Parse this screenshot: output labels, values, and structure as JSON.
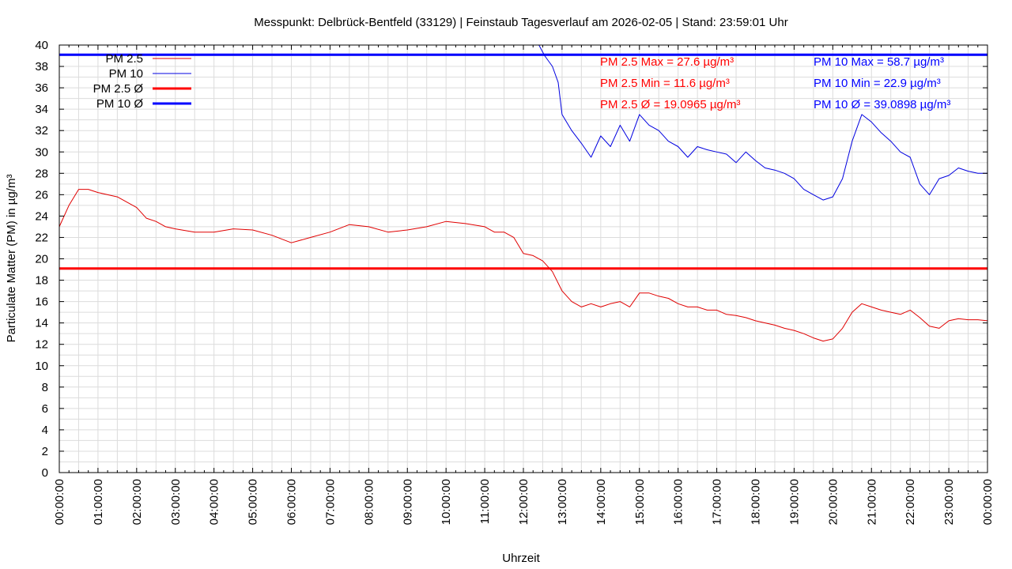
{
  "chart_data": {
    "type": "line",
    "title": "Messpunkt: Delbrück-Bentfeld (33129) | Feinstaub Tagesverlauf am 2026-02-05 | Stand: 23:59:01 Uhr",
    "xlabel": "Uhrzeit",
    "ylabel": "Particulate Matter (PM) in µg/m³",
    "xlim": [
      "00:00:00",
      "24:00:00"
    ],
    "ylim": [
      0,
      40
    ],
    "y_ticks": [
      "0",
      "2",
      "4",
      "6",
      "8",
      "10",
      "12",
      "14",
      "16",
      "18",
      "20",
      "22",
      "24",
      "26",
      "28",
      "30",
      "32",
      "34",
      "36",
      "38",
      "40"
    ],
    "x_ticks": [
      "00:00:00",
      "01:00:00",
      "02:00:00",
      "03:00:00",
      "04:00:00",
      "05:00:00",
      "06:00:00",
      "07:00:00",
      "08:00:00",
      "09:00:00",
      "10:00:00",
      "11:00:00",
      "12:00:00",
      "13:00:00",
      "14:00:00",
      "15:00:00",
      "16:00:00",
      "17:00:00",
      "18:00:00",
      "19:00:00",
      "20:00:00",
      "21:00:00",
      "22:00:00",
      "23:00:00",
      "00:00:00"
    ],
    "grid": true,
    "legend_position": "top-left",
    "legend": [
      "PM 2.5",
      "PM 10",
      "PM 2.5 Ø",
      "PM 10 Ø"
    ],
    "series": [
      {
        "name": "PM 2.5",
        "color": "#e00000",
        "x_hours": [
          0,
          0.25,
          0.5,
          0.75,
          1,
          1.25,
          1.5,
          1.75,
          2,
          2.25,
          2.5,
          2.75,
          3,
          3.5,
          4,
          4.5,
          5,
          5.5,
          6,
          6.5,
          7,
          7.5,
          8,
          8.5,
          9,
          9.5,
          10,
          10.5,
          11,
          11.25,
          11.5,
          11.75,
          12,
          12.25,
          12.5,
          12.75,
          13,
          13.25,
          13.5,
          13.75,
          14,
          14.25,
          14.5,
          14.75,
          15,
          15.25,
          15.5,
          15.75,
          16,
          16.25,
          16.5,
          16.75,
          17,
          17.25,
          17.5,
          17.75,
          18,
          18.25,
          18.5,
          18.75,
          19,
          19.25,
          19.5,
          19.75,
          20,
          20.25,
          20.5,
          20.75,
          21,
          21.25,
          21.5,
          21.75,
          22,
          22.25,
          22.5,
          22.75,
          23,
          23.25,
          23.5,
          23.75,
          24
        ],
        "values": [
          23,
          25,
          26.5,
          26.5,
          26.2,
          26,
          25.8,
          25.3,
          24.8,
          23.8,
          23.5,
          23,
          22.8,
          22.5,
          22.5,
          22.8,
          22.7,
          22.2,
          21.5,
          22,
          22.5,
          23.2,
          23,
          22.5,
          22.7,
          23,
          23.5,
          23.3,
          23,
          22.5,
          22.5,
          22,
          20.5,
          20.3,
          19.8,
          18.8,
          17,
          16,
          15.5,
          15.8,
          15.5,
          15.8,
          16,
          15.5,
          16.8,
          16.8,
          16.5,
          16.3,
          15.8,
          15.5,
          15.5,
          15.2,
          15.2,
          14.8,
          14.7,
          14.5,
          14.2,
          14,
          13.8,
          13.5,
          13.3,
          13,
          12.6,
          12.3,
          12.5,
          13.5,
          15,
          15.8,
          15.5,
          15.2,
          15,
          14.8,
          15.2,
          14.5,
          13.7,
          13.5,
          14.2,
          14.4,
          14.3,
          14.3,
          14.2
        ]
      },
      {
        "name": "PM 10",
        "color": "#0000e0",
        "x_hours": [
          12.4,
          12.55,
          12.75,
          12.9,
          13,
          13.25,
          13.5,
          13.75,
          14,
          14.25,
          14.5,
          14.75,
          15,
          15.25,
          15.5,
          15.75,
          16,
          16.25,
          16.5,
          16.75,
          17,
          17.25,
          17.5,
          17.75,
          18,
          18.25,
          18.5,
          18.75,
          19,
          19.25,
          19.5,
          19.75,
          20,
          20.25,
          20.5,
          20.75,
          21,
          21.25,
          21.5,
          21.75,
          22,
          22.25,
          22.5,
          22.75,
          23,
          23.25,
          23.5,
          23.75,
          24
        ],
        "values": [
          40,
          39,
          38,
          36.5,
          33.5,
          32,
          30.8,
          29.5,
          31.5,
          30.5,
          32.5,
          31,
          33.5,
          32.5,
          32,
          31,
          30.5,
          29.5,
          30.5,
          30.2,
          30,
          29.8,
          29,
          30,
          29.2,
          28.5,
          28.3,
          28,
          27.5,
          26.5,
          26,
          25.5,
          25.8,
          27.5,
          31,
          33.5,
          32.8,
          31.8,
          31,
          30,
          29.5,
          27,
          26,
          27.5,
          27.8,
          28.5,
          28.2,
          28,
          28
        ]
      },
      {
        "name": "PM 2.5 Ø",
        "color": "#ff0000",
        "constant": 19.0965
      },
      {
        "name": "PM 10 Ø",
        "color": "#0000ff",
        "constant": 39.0898
      }
    ],
    "annotations": [
      {
        "text": "PM 2.5 Max = 27.6 µg/m³",
        "color": "#ff0000"
      },
      {
        "text": "PM 2.5 Min = 11.6 µg/m³",
        "color": "#ff0000"
      },
      {
        "text": "PM 2.5 Ø = 19.0965 µg/m³",
        "color": "#ff0000"
      },
      {
        "text": "PM 10 Max = 58.7 µg/m³",
        "color": "#0000ff"
      },
      {
        "text": "PM 10 Min = 22.9 µg/m³",
        "color": "#0000ff"
      },
      {
        "text": "PM 10 Ø = 39.0898 µg/m³",
        "color": "#0000ff"
      }
    ]
  }
}
